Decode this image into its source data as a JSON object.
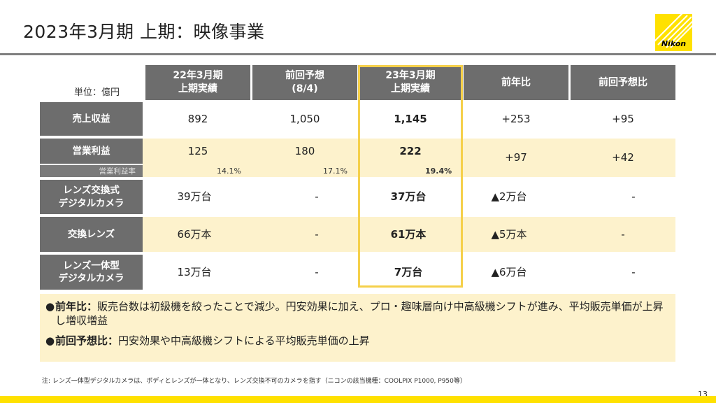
{
  "title": "2023年3月期 上期：映像事業",
  "logo": {
    "text": "Nikon",
    "color": "#ffe100"
  },
  "unit_label": "単位：億円",
  "table": {
    "headers": [
      {
        "line1": "22年3月期",
        "line2": "上期実績"
      },
      {
        "line1": "前回予想",
        "line2": "(8/4)"
      },
      {
        "line1": "23年3月期",
        "line2": "上期実績"
      },
      {
        "line1": "前年比",
        "line2": ""
      },
      {
        "line1": "前回予想比",
        "line2": ""
      }
    ],
    "rows": [
      {
        "label_line1": "売上収益",
        "label_line2": "",
        "values": [
          "892",
          "1,050",
          "1,145",
          "+253",
          "+95"
        ]
      },
      {
        "label_line1": "営業利益",
        "label_line2": "",
        "values": [
          "125",
          "180",
          "222",
          "+97",
          "+42"
        ]
      },
      {
        "label_line1": "レンズ交換式",
        "label_line2": "デジタルカメラ",
        "values": [
          "39万台",
          "-",
          "37万台",
          "▲2万台",
          "-"
        ]
      },
      {
        "label_line1": "交換レンズ",
        "label_line2": "",
        "values": [
          "66万本",
          "-",
          "61万本",
          "▲5万本",
          "-"
        ]
      },
      {
        "label_line1": "レンズ一体型",
        "label_line2": "デジタルカメラ",
        "values": [
          "13万台",
          "-",
          "7万台",
          "▲6万台",
          "-"
        ]
      }
    ],
    "margin_row": {
      "label": "営業利益率",
      "values": [
        "14.1%",
        "17.1%",
        "19.4%"
      ]
    },
    "highlight_color": "#f5d04a"
  },
  "notes": [
    {
      "bullet": "●",
      "label": "前年比：",
      "text": "販売台数は初級機を絞ったことで減少。円安効果に加え、プロ・趣味層向け中高級機シフトが進み、平均販売単価が上昇し増収増益"
    },
    {
      "bullet": "●",
      "label": "前回予想比：",
      "text": "円安効果や中高級機シフトによる平均販売単価の上昇"
    }
  ],
  "footnote": "注: レンズ一体型デジタルカメラは、ボディとレンズが一体となり、レンズ交換不可のカメラを指す（ニコンの該当機種：COOLPIX P1000, P950等）",
  "page_number": "13",
  "colors": {
    "header_gray": "#6d6d6d",
    "cream": "#fdf2cc",
    "brand_yellow": "#ffe100"
  }
}
